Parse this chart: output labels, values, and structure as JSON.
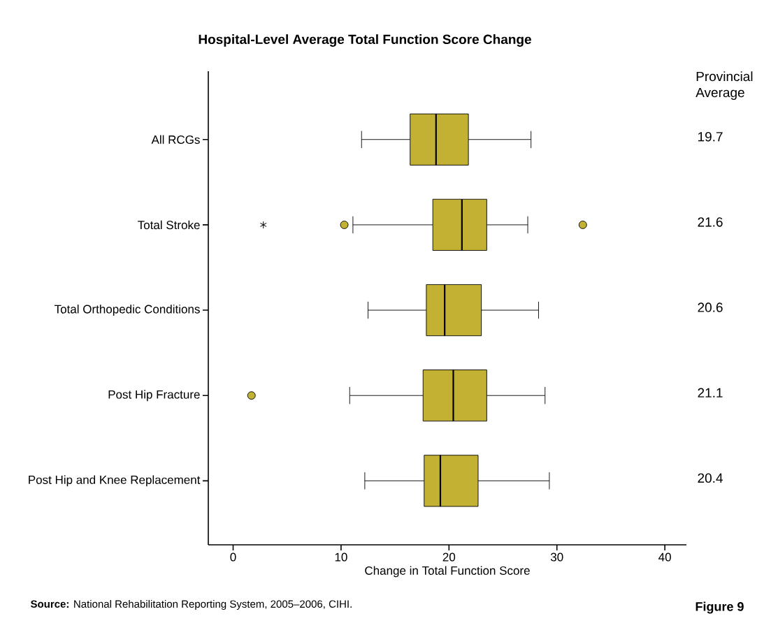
{
  "chart_data": {
    "type": "box",
    "orientation": "horizontal",
    "title": "Hospital-Level Average Total Function Score Change",
    "xlabel": "Change in Total Function Score",
    "categories": [
      "All RCGs",
      "Total Stroke",
      "Total Orthopedic Conditions",
      "Post Hip Fracture",
      "Post Hip and Knee Replacement"
    ],
    "boxes": [
      {
        "low": 11.9,
        "q1": 16.4,
        "median": 18.8,
        "q3": 21.8,
        "high": 27.6
      },
      {
        "low": 11.1,
        "q1": 18.5,
        "median": 21.2,
        "q3": 23.5,
        "high": 27.3,
        "outliers": [
          2.8,
          10.3,
          32.4
        ]
      },
      {
        "low": 12.5,
        "q1": 17.9,
        "median": 19.6,
        "q3": 23.0,
        "high": 28.3
      },
      {
        "low": 10.8,
        "q1": 17.6,
        "median": 20.4,
        "q3": 23.5,
        "high": 28.9,
        "outliers": [
          1.7
        ]
      },
      {
        "low": 12.2,
        "q1": 17.7,
        "median": 19.2,
        "q3": 22.7,
        "high": 29.3
      }
    ],
    "color": "#c2b133",
    "marker": "circle",
    "xlim": [
      -2.3,
      42
    ],
    "xticks": [
      0,
      10,
      20,
      30,
      40
    ],
    "annotations": [
      "Provincial Average",
      "19.7",
      "21.6",
      "20.6",
      "21.1",
      "20.4",
      "**Source:** National Rehabilitation Reporting System, 2005–2006, CIHI.",
      "Figure 9"
    ]
  }
}
